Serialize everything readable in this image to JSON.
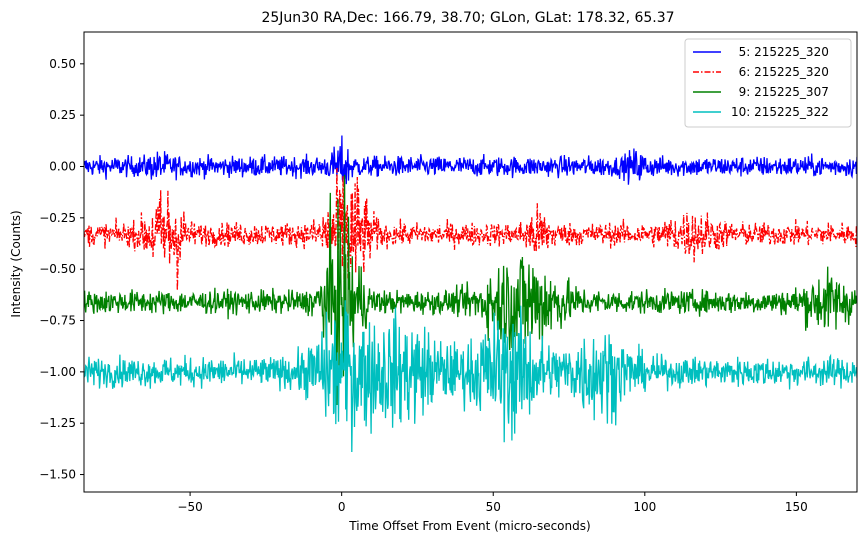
{
  "chart_data": {
    "type": "line",
    "title": "25Jun30 RA,Dec:  166.79,  38.70; GLon, GLat:  178.32,  65.37",
    "xlabel": "Time Offset From Event (micro-seconds)",
    "ylabel": "Intensity (Counts)",
    "xlim": [
      -85,
      170
    ],
    "ylim": [
      -1.585,
      0.655
    ],
    "xticks": [
      -50,
      0,
      50,
      100,
      150
    ],
    "xtick_labels": [
      "−50",
      "0",
      "50",
      "100",
      "150"
    ],
    "yticks": [
      0.5,
      0.25,
      0.0,
      -0.25,
      -0.5,
      -0.75,
      -1.0,
      -1.25,
      -1.5
    ],
    "ytick_labels": [
      "0.50",
      "0.25",
      "0.00",
      "−0.25",
      "−0.50",
      "−0.75",
      "−1.00",
      "−1.25",
      "−1.50"
    ],
    "grid": false,
    "legend_position": "top-right",
    "series": [
      {
        "name": "  5: 215225_320",
        "color": "#0000ff",
        "linestyle": "solid",
        "baseline": 0.0,
        "noise": 0.035,
        "bursts": [
          {
            "x": -60,
            "width": 4,
            "amp": 0.02
          },
          {
            "x": 0,
            "width": 3,
            "amp": 0.06
          },
          {
            "x": 97,
            "width": 3,
            "amp": 0.03
          }
        ]
      },
      {
        "name": "  6: 215225_320",
        "color": "#ff0000",
        "linestyle": "dashdot",
        "baseline": -0.33,
        "noise": 0.04,
        "bursts": [
          {
            "x": -60,
            "width": 5,
            "amp": 0.1
          },
          {
            "x": -55,
            "width": 3,
            "amp": 0.12
          },
          {
            "x": 0,
            "width": 6,
            "amp": 0.14
          },
          {
            "x": 5,
            "width": 5,
            "amp": 0.1
          },
          {
            "x": 65,
            "width": 4,
            "amp": 0.06
          },
          {
            "x": 116,
            "width": 8,
            "amp": 0.05
          }
        ]
      },
      {
        "name": "  9: 215225_307",
        "color": "#008000",
        "linestyle": "solid",
        "baseline": -0.66,
        "noise": 0.04,
        "bursts": [
          {
            "x": -3,
            "width": 4,
            "amp": 0.18
          },
          {
            "x": 2,
            "width": 5,
            "amp": 0.2
          },
          {
            "x": 60,
            "width": 12,
            "amp": 0.16
          },
          {
            "x": 160,
            "width": 8,
            "amp": 0.07
          }
        ]
      },
      {
        "name": "10: 215225_322",
        "color": "#00bfbf",
        "linestyle": "solid",
        "baseline": -1.0,
        "noise": 0.05,
        "bursts": [
          {
            "x": 0,
            "width": 10,
            "amp": 0.16
          },
          {
            "x": 20,
            "width": 14,
            "amp": 0.14
          },
          {
            "x": 55,
            "width": 12,
            "amp": 0.17
          },
          {
            "x": 85,
            "width": 10,
            "amp": 0.12
          }
        ]
      }
    ]
  }
}
